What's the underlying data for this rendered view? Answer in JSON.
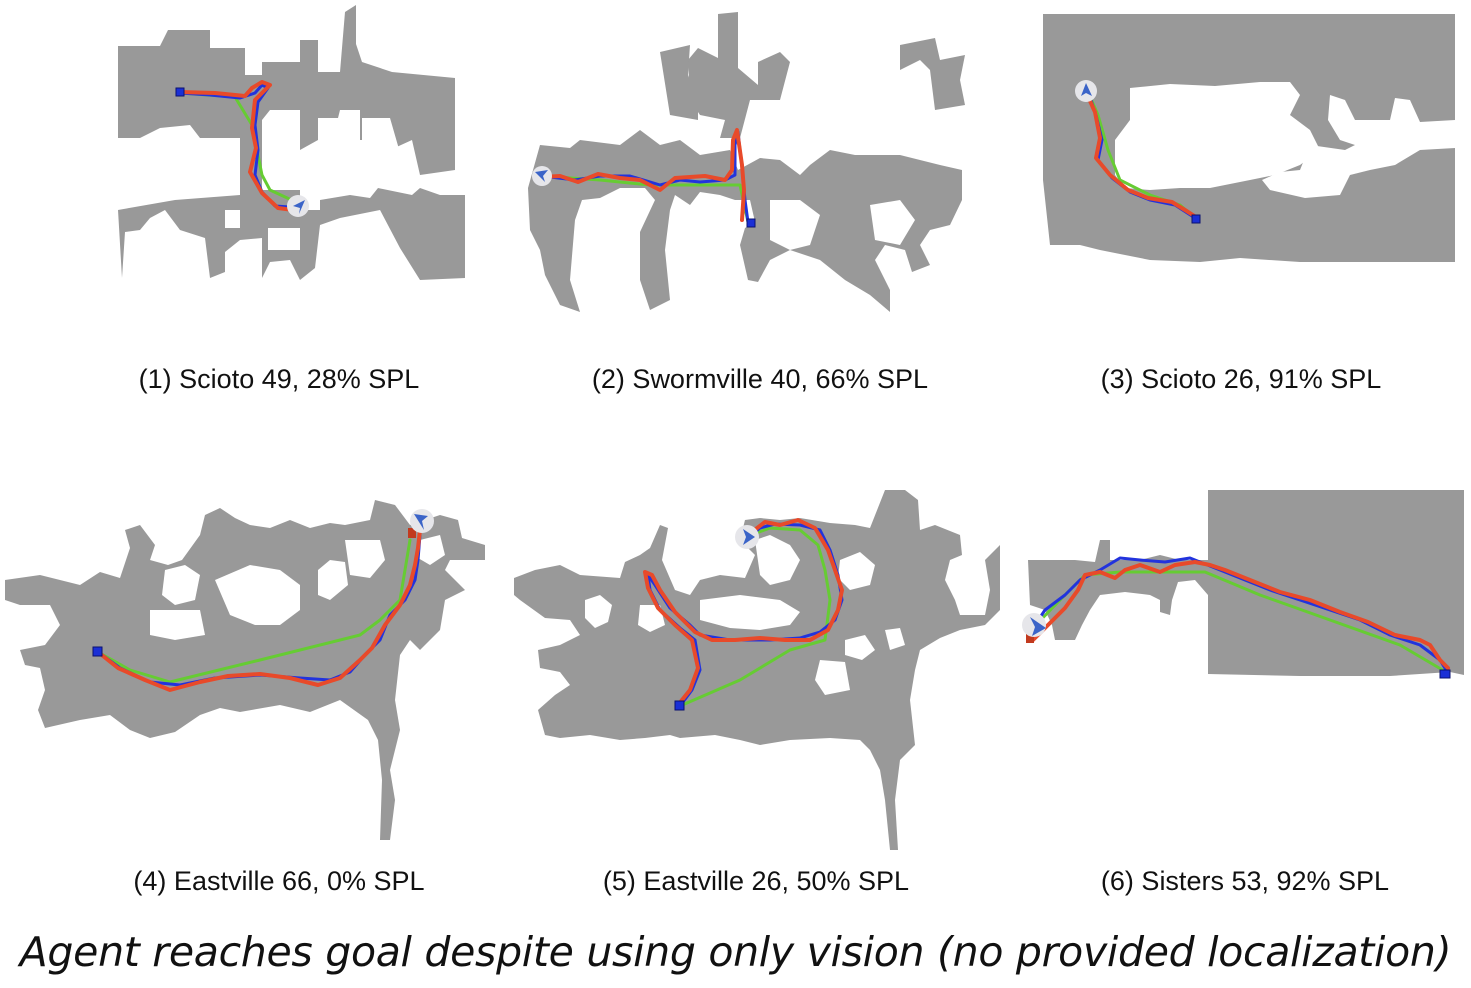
{
  "panels": [
    {
      "caption": "(1) Scioto 49, 28% SPL"
    },
    {
      "caption": "(2) Swormville 40, 66% SPL"
    },
    {
      "caption": "(3) Scioto 26, 91% SPL"
    },
    {
      "caption": "(4) Eastville 66, 0% SPL"
    },
    {
      "caption": "(5) Eastville 26, 50% SPL"
    },
    {
      "caption": "(6) Sisters 53, 92% SPL"
    }
  ],
  "footer": "Agent reaches goal despite using only vision (no provided localization)",
  "colors": {
    "map_free": "#999999",
    "background": "#ffffff",
    "shortest_path": "#66cc33",
    "ground_truth_path": "#2233dd",
    "estimated_path": "#e84a2a",
    "goal_marker": "#1a2fd6",
    "agent_marker": "#3b64c8"
  },
  "icons": [
    "agent-arrow-icon",
    "goal-square-icon"
  ]
}
